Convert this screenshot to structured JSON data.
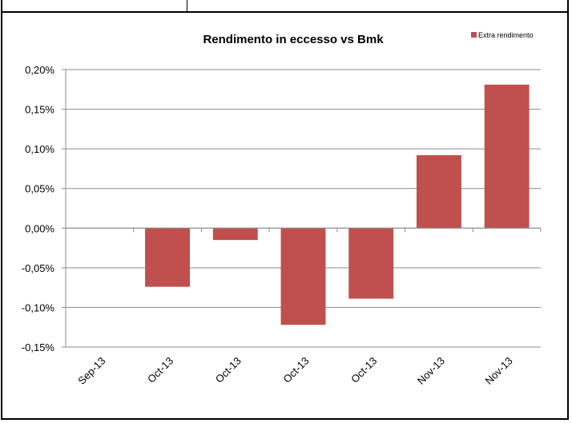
{
  "chart_data": {
    "type": "bar",
    "title": "Rendimento in eccesso vs Bmk",
    "xlabel": "",
    "ylabel": "",
    "categories": [
      "Sep-13",
      "Oct-13",
      "Oct-13",
      "Oct-13",
      "Oct-13",
      "Nov-13",
      "Nov-13"
    ],
    "series": [
      {
        "name": "Extra rendimento",
        "values": [
          0.0,
          -0.074,
          -0.015,
          -0.122,
          -0.089,
          0.092,
          0.181
        ],
        "color": "#c0504d"
      }
    ],
    "yticks": [
      "-0,15%",
      "-0,10%",
      "-0,05%",
      "0,00%",
      "0,05%",
      "0,10%",
      "0,15%",
      "0,20%"
    ],
    "ytick_values": [
      -0.15,
      -0.1,
      -0.05,
      0.0,
      0.05,
      0.1,
      0.15,
      0.2
    ],
    "ylim": [
      -0.15,
      0.2
    ],
    "unit": "%",
    "grid": true,
    "legend_position": "top-right"
  }
}
